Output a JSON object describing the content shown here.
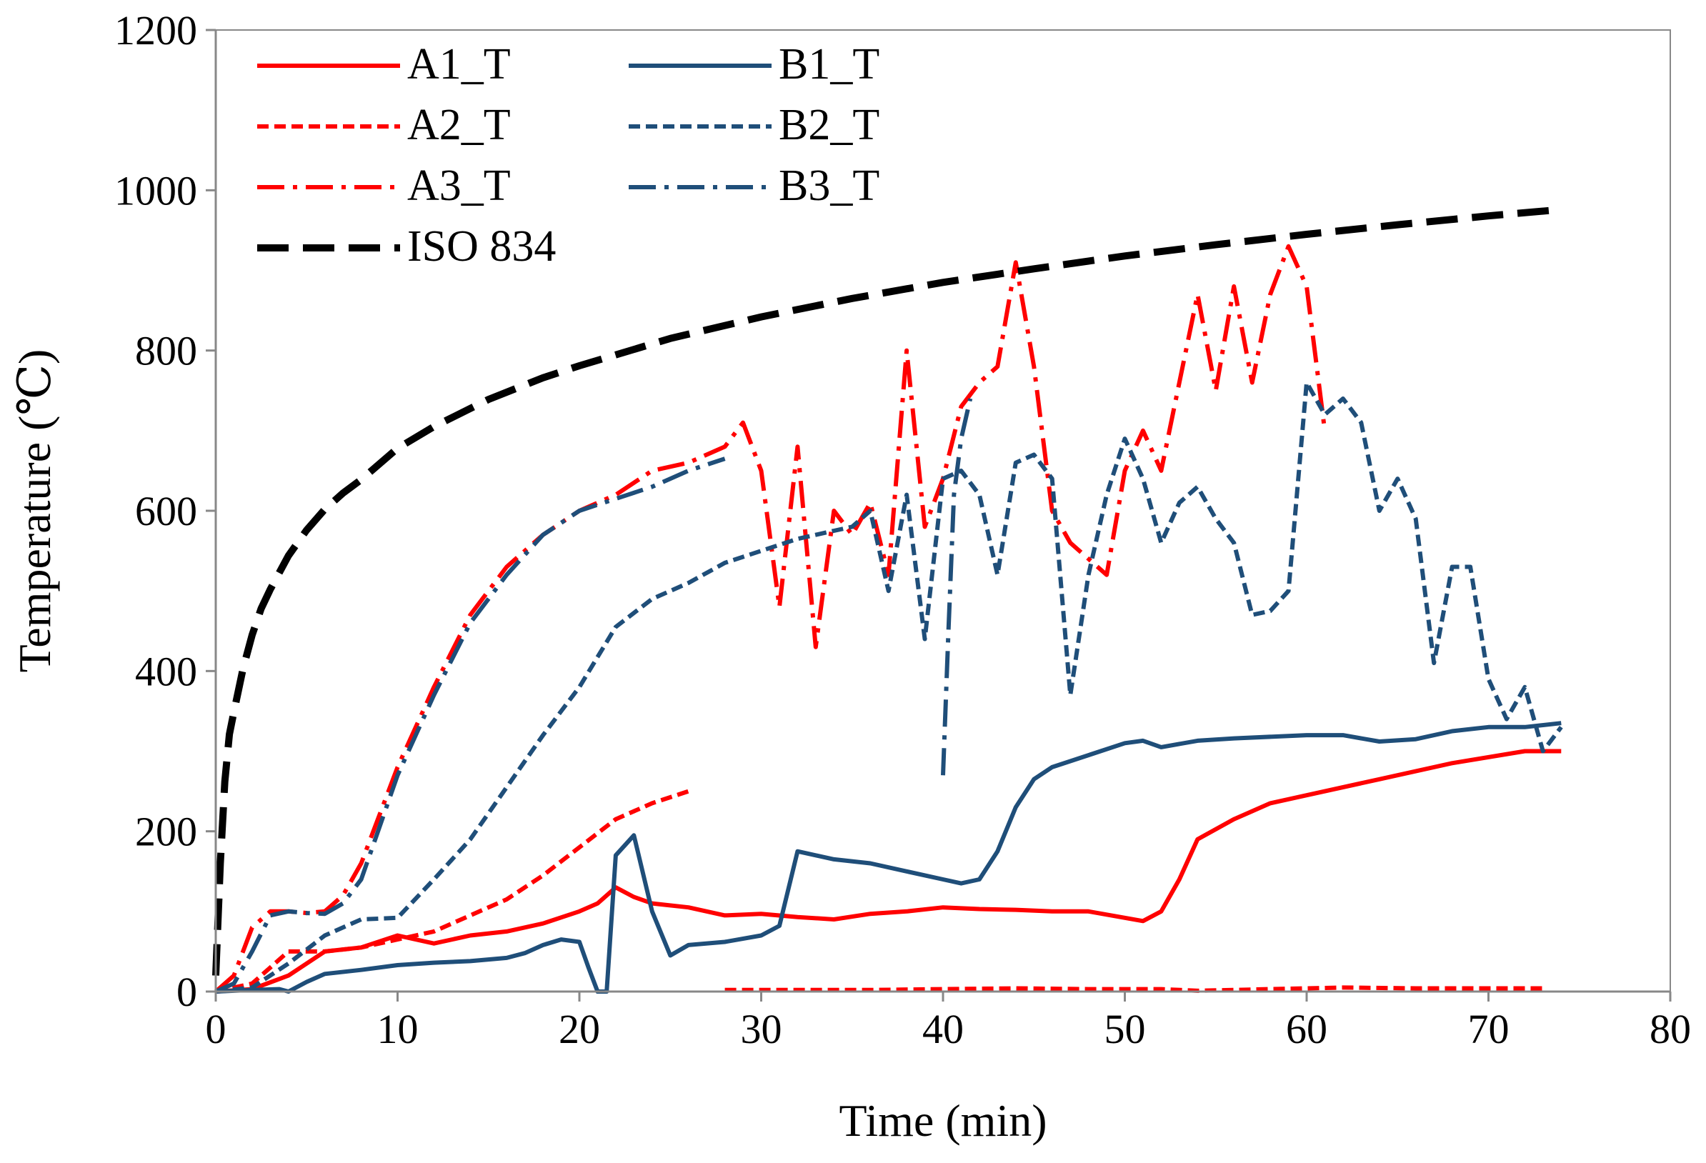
{
  "chart_data": {
    "type": "line",
    "title": "",
    "xlabel": "Time (min)",
    "ylabel": "Temperature (℃)",
    "xlim": [
      0,
      80
    ],
    "ylim": [
      0,
      1200
    ],
    "xticks": [
      0,
      10,
      20,
      30,
      40,
      50,
      60,
      70,
      80
    ],
    "yticks": [
      0,
      200,
      400,
      600,
      800,
      1000,
      1200
    ],
    "xtick_labels": [
      "0",
      "10",
      "20",
      "30",
      "40",
      "50",
      "60",
      "70",
      "80"
    ],
    "ytick_labels": [
      "0",
      "200",
      "400",
      "600",
      "800",
      "1000",
      "1200"
    ],
    "grid": false,
    "legend_position": "top-left",
    "colors": {
      "red": "#ff0000",
      "blue": "#1f4e79",
      "black": "#000000"
    },
    "series": [
      {
        "name": "A1_T",
        "color": "#ff0000",
        "style": "solid",
        "x": [
          0,
          2,
          4,
          6,
          8,
          10,
          12,
          14,
          16,
          18,
          20,
          21,
          22,
          23,
          24,
          26,
          28,
          30,
          32,
          34,
          36,
          38,
          40,
          42,
          44,
          46,
          48,
          50,
          51,
          52,
          53,
          54,
          56,
          58,
          60,
          64,
          68,
          72,
          74
        ],
        "y": [
          0,
          3,
          20,
          50,
          55,
          70,
          60,
          70,
          75,
          85,
          100,
          110,
          130,
          118,
          110,
          105,
          95,
          97,
          93,
          90,
          97,
          100,
          105,
          103,
          102,
          100,
          100,
          92,
          88,
          100,
          140,
          190,
          215,
          235,
          245,
          265,
          285,
          300,
          300
        ]
      },
      {
        "name": "A2_T",
        "color": "#ff0000",
        "style": "dashed",
        "x": [
          0,
          2,
          4,
          6,
          8,
          10,
          12,
          14,
          16,
          18,
          20,
          22,
          24,
          26,
          null,
          28,
          32,
          36,
          40,
          44,
          48,
          52,
          54,
          58,
          62,
          66,
          70,
          73
        ],
        "y": [
          0,
          10,
          50,
          50,
          55,
          65,
          75,
          95,
          115,
          145,
          180,
          215,
          235,
          250,
          null,
          2,
          2,
          2,
          3,
          4,
          3,
          3,
          1,
          3,
          5,
          4,
          4,
          4
        ]
      },
      {
        "name": "A3_T",
        "color": "#ff0000",
        "style": "dashdot",
        "x": [
          0,
          1,
          2,
          3,
          4,
          5,
          6,
          7,
          8,
          10,
          12,
          14,
          16,
          18,
          20,
          22,
          24,
          26,
          28,
          29,
          30,
          31,
          32,
          33,
          34,
          35,
          36,
          37,
          38,
          39,
          40,
          41,
          42,
          43,
          44,
          45,
          46,
          47,
          48,
          49,
          50,
          51,
          52,
          53,
          54,
          55,
          56,
          57,
          58,
          59,
          60,
          61
        ],
        "y": [
          0,
          20,
          80,
          100,
          100,
          98,
          100,
          120,
          160,
          280,
          380,
          470,
          530,
          570,
          600,
          620,
          650,
          660,
          680,
          710,
          650,
          480,
          680,
          430,
          600,
          570,
          610,
          520,
          800,
          580,
          640,
          730,
          760,
          780,
          910,
          780,
          600,
          560,
          540,
          520,
          650,
          700,
          650,
          760,
          870,
          750,
          880,
          760,
          870,
          930,
          880,
          700
        ]
      },
      {
        "name": "B1_T",
        "color": "#1f4e79",
        "style": "solid",
        "x": [
          0,
          2,
          3.5,
          4,
          5,
          6,
          8,
          10,
          12,
          14,
          16,
          17,
          18,
          19,
          20,
          20.5,
          21,
          21.5,
          22,
          23,
          24,
          25,
          26,
          28,
          30,
          31,
          32,
          34,
          36,
          38,
          40,
          41,
          42,
          43,
          44,
          45,
          46,
          48,
          50,
          51,
          52,
          54,
          56,
          60,
          62,
          64,
          66,
          68,
          70,
          72,
          74
        ],
        "y": [
          0,
          2,
          3,
          0,
          12,
          22,
          27,
          33,
          36,
          38,
          42,
          48,
          58,
          65,
          62,
          30,
          0,
          0,
          170,
          195,
          100,
          45,
          58,
          62,
          70,
          82,
          175,
          165,
          160,
          150,
          140,
          135,
          140,
          175,
          230,
          265,
          280,
          295,
          310,
          313,
          305,
          313,
          316,
          320,
          320,
          312,
          315,
          325,
          330,
          330,
          335
        ]
      },
      {
        "name": "B2_T",
        "color": "#1f4e79",
        "style": "dashed",
        "x": [
          0,
          2,
          4,
          6,
          8,
          10,
          12,
          14,
          16,
          18,
          20,
          22,
          24,
          26,
          28,
          30,
          32,
          34,
          35,
          36,
          37,
          38,
          39,
          40,
          41,
          42,
          43,
          44,
          45,
          46,
          47,
          48,
          49,
          50,
          51,
          52,
          53,
          54,
          55,
          56,
          57,
          58,
          59,
          60,
          61,
          62,
          63,
          64,
          65,
          66,
          67,
          68,
          69,
          70,
          71,
          72,
          73,
          74
        ],
        "y": [
          0,
          5,
          35,
          70,
          90,
          92,
          140,
          190,
          255,
          320,
          380,
          455,
          490,
          510,
          535,
          550,
          565,
          575,
          580,
          600,
          500,
          620,
          440,
          640,
          650,
          620,
          520,
          660,
          670,
          640,
          370,
          520,
          620,
          690,
          640,
          560,
          610,
          630,
          590,
          560,
          470,
          475,
          500,
          760,
          720,
          740,
          710,
          600,
          640,
          590,
          410,
          530,
          530,
          390,
          340,
          380,
          300,
          330
        ]
      },
      {
        "name": "B3_T",
        "color": "#1f4e79",
        "style": "dashdot",
        "x": [
          0,
          1,
          2,
          3,
          4,
          5,
          6,
          7,
          8,
          10,
          12,
          14,
          16,
          18,
          20,
          22,
          24,
          26,
          28,
          null,
          40,
          40.3,
          40.6,
          41,
          41.5
        ],
        "y": [
          0,
          10,
          50,
          95,
          100,
          98,
          97,
          110,
          140,
          270,
          370,
          460,
          520,
          570,
          600,
          615,
          630,
          650,
          665,
          null,
          270,
          450,
          620,
          690,
          740
        ]
      },
      {
        "name": "ISO 834",
        "color": "#000000",
        "style": "longdash",
        "x": [
          0,
          0.25,
          0.5,
          0.75,
          1,
          1.5,
          2,
          2.5,
          3,
          4,
          5,
          6,
          7,
          8,
          10,
          12,
          15,
          18,
          20,
          25,
          30,
          35,
          40,
          45,
          50,
          55,
          60,
          65,
          70,
          74
        ],
        "y": [
          20,
          160,
          262,
          321,
          349,
          403,
          445,
          478,
          502,
          544,
          576,
          602,
          622,
          639,
          678,
          705,
          739,
          766,
          781,
          815,
          842,
          865,
          885,
          902,
          918,
          932,
          945,
          957,
          968,
          976
        ]
      }
    ]
  }
}
